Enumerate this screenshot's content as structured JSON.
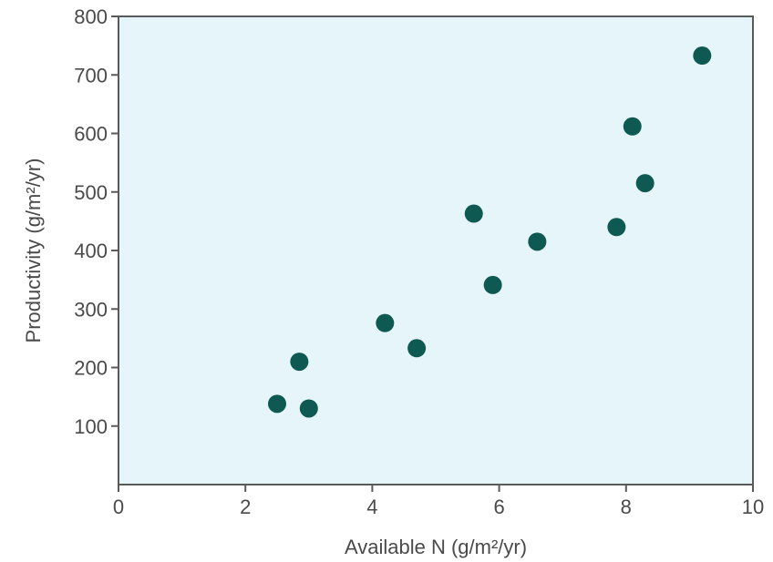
{
  "chart_data": {
    "type": "scatter",
    "title": "",
    "xlabel": "Available N (g/m²/yr)",
    "ylabel": "Productivity (g/m²/yr)",
    "xlim": [
      0,
      10
    ],
    "ylim": [
      0,
      800
    ],
    "x_ticks": [
      0,
      2,
      4,
      6,
      8,
      10
    ],
    "y_ticks": [
      100,
      200,
      300,
      400,
      500,
      600,
      700,
      800
    ],
    "grid": false,
    "legend": "none",
    "colors": {
      "plot_background": "#e6f5fa",
      "frame": "#5a5a5a",
      "marker": "#0e5a52",
      "text": "#4a4a4a"
    },
    "series": [
      {
        "points": [
          {
            "x": 2.5,
            "y": 138
          },
          {
            "x": 2.85,
            "y": 210
          },
          {
            "x": 3.0,
            "y": 130
          },
          {
            "x": 4.2,
            "y": 276
          },
          {
            "x": 4.7,
            "y": 233
          },
          {
            "x": 5.6,
            "y": 463
          },
          {
            "x": 5.9,
            "y": 341
          },
          {
            "x": 6.6,
            "y": 415
          },
          {
            "x": 7.85,
            "y": 440
          },
          {
            "x": 8.1,
            "y": 612
          },
          {
            "x": 8.3,
            "y": 515
          },
          {
            "x": 9.2,
            "y": 733
          }
        ]
      }
    ]
  }
}
